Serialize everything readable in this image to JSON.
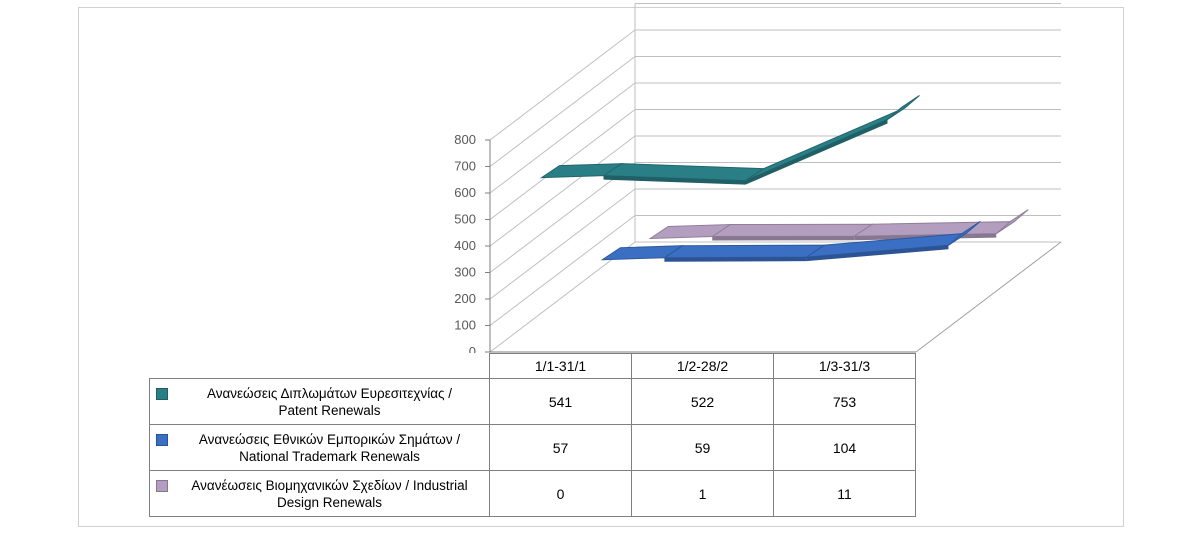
{
  "chart_data": {
    "type": "line",
    "subtype": "3d-ribbon",
    "categories": [
      "1/1-31/1",
      "1/2-28/2",
      "1/3-31/3"
    ],
    "series": [
      {
        "name": "Ανανεώσεις Διπλωμάτων Ευρεσιτεχνίας  / Patent Renewals",
        "name_lines": [
          "Ανανεώσεις Διπλωμάτων Ευρεσιτεχνίας  /",
          "Patent Renewals"
        ],
        "values": [
          541,
          522,
          753
        ],
        "values_text": [
          "541",
          "522",
          "753"
        ],
        "color": "#2a7f86"
      },
      {
        "name": "Ανανεώσεις Εθνικών Εμπορικών Σημάτων / National Trademark Renewals",
        "name_lines": [
          "Ανανεώσεις Εθνικών Εμπορικών Σημάτων /",
          "National Trademark Renewals"
        ],
        "values": [
          57,
          59,
          104
        ],
        "values_text": [
          "57",
          "59",
          "104"
        ],
        "color": "#3a6fc4"
      },
      {
        "name": "Ανανέωσεις Βιομηχανικών Σχεδίων / Industrial Design Renewals",
        "name_lines": [
          "Ανανέωσεις Βιομηχανικών Σχεδίων / Industrial",
          "Design Renewals"
        ],
        "values": [
          0,
          1,
          11
        ],
        "values_text": [
          "0",
          "1",
          "11"
        ],
        "color": "#b49ec0"
      }
    ],
    "y_ticks": [
      "0",
      "100",
      "200",
      "300",
      "400",
      "500",
      "600",
      "700",
      "800"
    ],
    "ylim": [
      0,
      800
    ],
    "grid": true,
    "legend": "data-table"
  }
}
